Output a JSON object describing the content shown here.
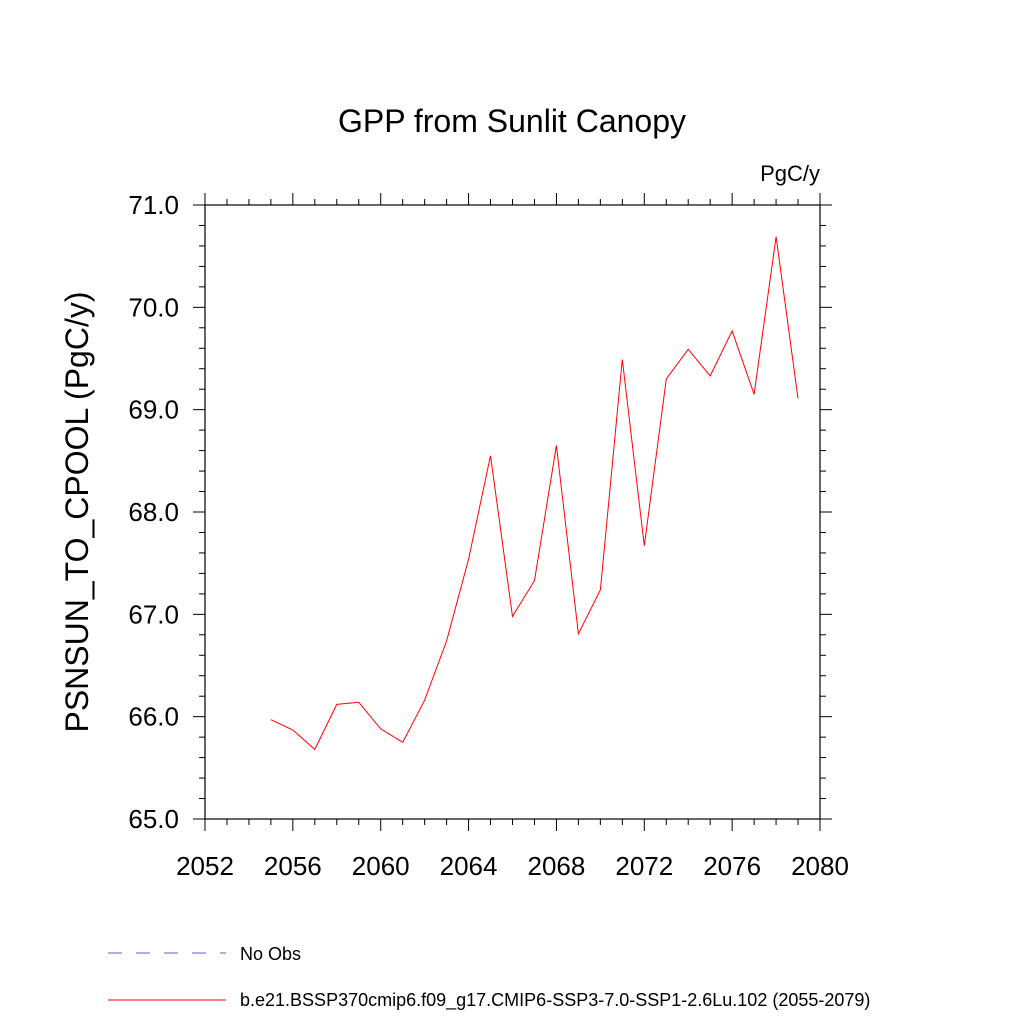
{
  "chart_data": {
    "type": "line",
    "title": "GPP from Sunlit Canopy",
    "units_label": "PgC/y",
    "ylabel": "PSNSUN_TO_CPOOL  (PgC/y)",
    "xlabel": "",
    "xlim": [
      2052,
      2080
    ],
    "ylim": [
      65.0,
      71.0
    ],
    "x_ticks": [
      "2052",
      "2056",
      "2060",
      "2064",
      "2068",
      "2072",
      "2076",
      "2080"
    ],
    "y_ticks": [
      "65.0",
      "66.0",
      "67.0",
      "68.0",
      "69.0",
      "70.0",
      "71.0"
    ],
    "series": [
      {
        "name": "b.e21.BSSP370cmip6.f09_g17.CMIP6-SSP3-7.0-SSP1-2.6Lu.102 (2055-2079)",
        "color": "#ff0000",
        "x": [
          2055,
          2056,
          2057,
          2058,
          2059,
          2060,
          2061,
          2062,
          2063,
          2064,
          2065,
          2066,
          2067,
          2068,
          2069,
          2070,
          2071,
          2072,
          2073,
          2074,
          2075,
          2076,
          2077,
          2078,
          2079
        ],
        "values": [
          65.97,
          65.87,
          65.68,
          66.12,
          66.14,
          65.88,
          65.75,
          66.16,
          66.74,
          67.54,
          68.55,
          66.98,
          67.33,
          68.65,
          66.81,
          67.24,
          69.49,
          67.67,
          69.3,
          69.59,
          69.33,
          69.77,
          69.15,
          70.69,
          69.11
        ]
      }
    ],
    "legend": [
      {
        "label": "No Obs",
        "color": "#6a5acd",
        "style": "dashed"
      },
      {
        "label": "b.e21.BSSP370cmip6.f09_g17.CMIP6-SSP3-7.0-SSP1-2.6Lu.102 (2055-2079)",
        "color": "#ff0000",
        "style": "solid"
      }
    ],
    "legend_position": "bottom-left",
    "grid": false
  }
}
